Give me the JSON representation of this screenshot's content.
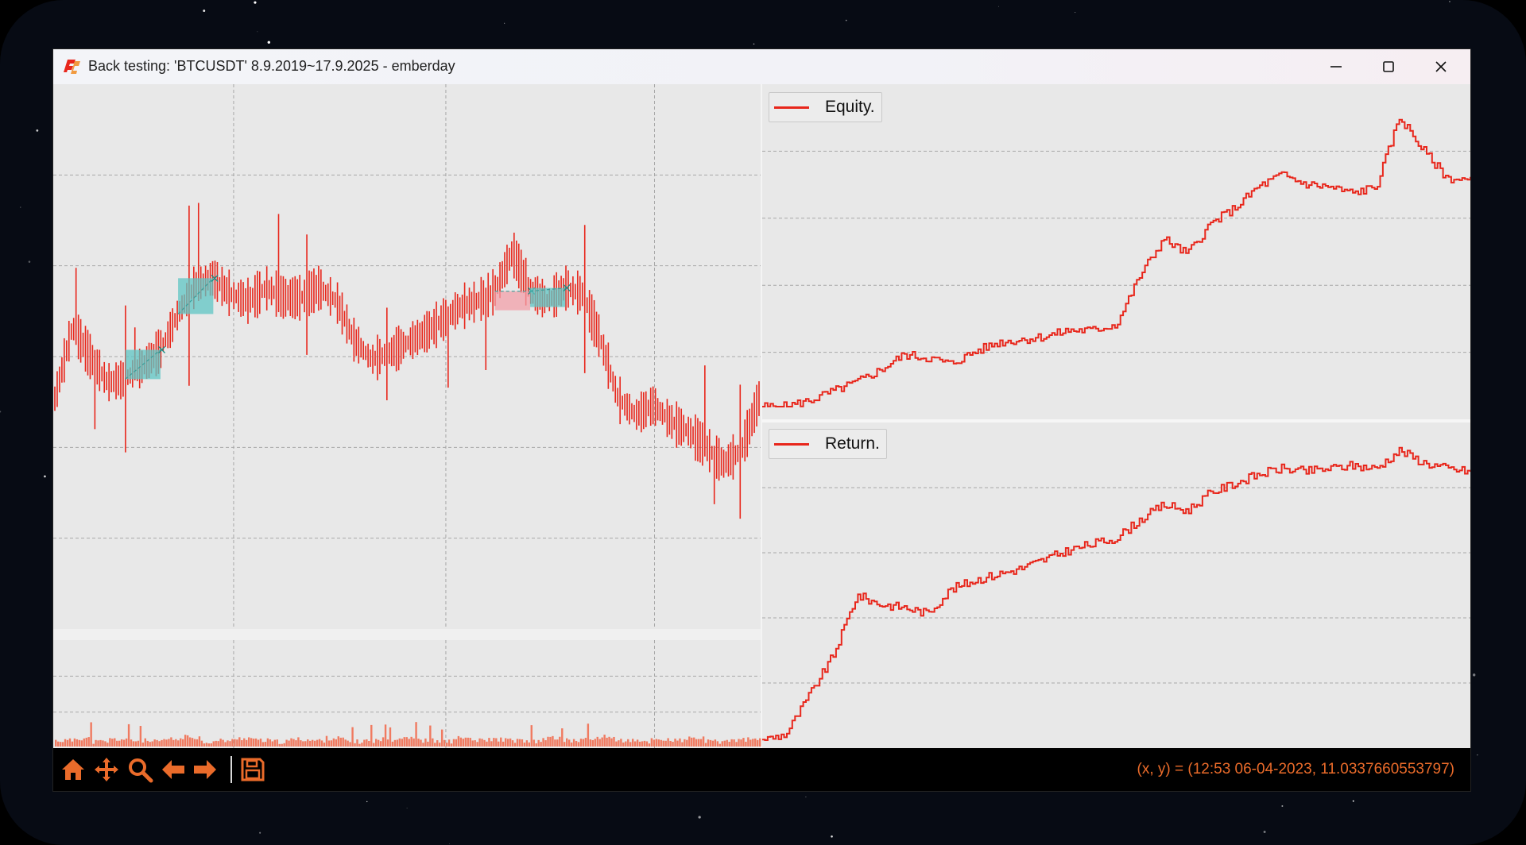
{
  "window": {
    "title": "Back testing: 'BTCUSDT' 8.9.2019~17.9.2025 - emberday",
    "app_icon": "emberday-logo-icon",
    "controls": [
      "minimize-icon",
      "maximize-icon",
      "close-icon"
    ]
  },
  "colors": {
    "series": "#e8261b",
    "win_trade": "#5fc6c4",
    "loss_trade": "#f3a0aa",
    "toolbar_icons": "#ea6b2a",
    "plot_bg": "#e8e8e8",
    "grid": "#a8a8a8"
  },
  "chart_data": [
    {
      "type": "line",
      "panel": "price",
      "title": "",
      "grid": true,
      "x": [
        0,
        1,
        2,
        3,
        4,
        5,
        6,
        7,
        8,
        9,
        10,
        11,
        12,
        13,
        14,
        15,
        16,
        17,
        18,
        19,
        20,
        21,
        22,
        23,
        24,
        25,
        26,
        27,
        28,
        29,
        30,
        31,
        32,
        33,
        34,
        35,
        36,
        37,
        38,
        39,
        40
      ],
      "series": [
        {
          "values": [
            0.4,
            0.62,
            0.53,
            0.45,
            0.46,
            0.5,
            0.55,
            0.66,
            0.75,
            0.77,
            0.72,
            0.7,
            0.74,
            0.71,
            0.71,
            0.74,
            0.7,
            0.58,
            0.52,
            0.54,
            0.57,
            0.6,
            0.64,
            0.68,
            0.7,
            0.73,
            0.85,
            0.73,
            0.7,
            0.74,
            0.72,
            0.58,
            0.4,
            0.35,
            0.38,
            0.33,
            0.3,
            0.25,
            0.2,
            0.24,
            0.4
          ]
        }
      ],
      "trades": [
        {
          "result": "win",
          "from": 4,
          "to": 6
        },
        {
          "result": "win",
          "from": 7,
          "to": 9
        },
        {
          "result": "loss",
          "from": 25,
          "to": 27
        },
        {
          "result": "win",
          "from": 27,
          "to": 29
        }
      ]
    },
    {
      "type": "bar",
      "panel": "volume",
      "title": "",
      "grid": true,
      "values": [
        3,
        5,
        2,
        4,
        3,
        2,
        4,
        6,
        2,
        3,
        5,
        3,
        2,
        4,
        3,
        5,
        2,
        3,
        4,
        6,
        3,
        2,
        5,
        3,
        4,
        3,
        2,
        5,
        3,
        4,
        6,
        3,
        2,
        4,
        3,
        5,
        2,
        3,
        4,
        3
      ]
    },
    {
      "type": "line",
      "panel": "equity",
      "title": "",
      "legend": "top-left",
      "grid": true,
      "x": [
        0,
        1,
        2,
        3,
        4,
        5,
        6,
        7,
        8,
        9,
        10,
        11,
        12,
        13,
        14,
        15,
        16,
        17,
        18,
        19,
        20,
        21,
        22,
        23,
        24,
        25,
        26,
        27,
        28,
        29,
        30
      ],
      "series": [
        {
          "name": "Equity.",
          "values": [
            0.0,
            0.0,
            0.02,
            0.05,
            0.08,
            0.12,
            0.17,
            0.16,
            0.14,
            0.18,
            0.21,
            0.22,
            0.23,
            0.25,
            0.25,
            0.27,
            0.43,
            0.55,
            0.5,
            0.6,
            0.65,
            0.72,
            0.76,
            0.73,
            0.72,
            0.7,
            0.72,
            0.95,
            0.84,
            0.75,
            0.74
          ]
        }
      ]
    },
    {
      "type": "line",
      "panel": "return",
      "title": "",
      "legend": "top-left",
      "grid": true,
      "x": [
        0,
        1,
        2,
        3,
        4,
        5,
        6,
        7,
        8,
        9,
        10,
        11,
        12,
        13,
        14,
        15,
        16,
        17,
        18,
        19,
        20,
        21,
        22,
        23,
        24,
        25,
        26,
        27,
        28,
        29,
        30
      ],
      "series": [
        {
          "name": "Return.",
          "values": [
            0.0,
            0.02,
            0.15,
            0.28,
            0.48,
            0.45,
            0.44,
            0.42,
            0.5,
            0.53,
            0.55,
            0.57,
            0.6,
            0.63,
            0.65,
            0.67,
            0.73,
            0.78,
            0.76,
            0.82,
            0.85,
            0.88,
            0.9,
            0.89,
            0.9,
            0.91,
            0.9,
            0.96,
            0.92,
            0.9,
            0.89
          ]
        }
      ]
    }
  ],
  "legends": {
    "equity": "Equity.",
    "return": "Return."
  },
  "toolbar": {
    "icons": [
      "home-icon",
      "pan-icon",
      "zoom-icon",
      "back-icon",
      "forward-icon",
      "save-icon"
    ],
    "coords": "(x, y) = (12:53 06-04-2023, 11.0337660553797)"
  }
}
